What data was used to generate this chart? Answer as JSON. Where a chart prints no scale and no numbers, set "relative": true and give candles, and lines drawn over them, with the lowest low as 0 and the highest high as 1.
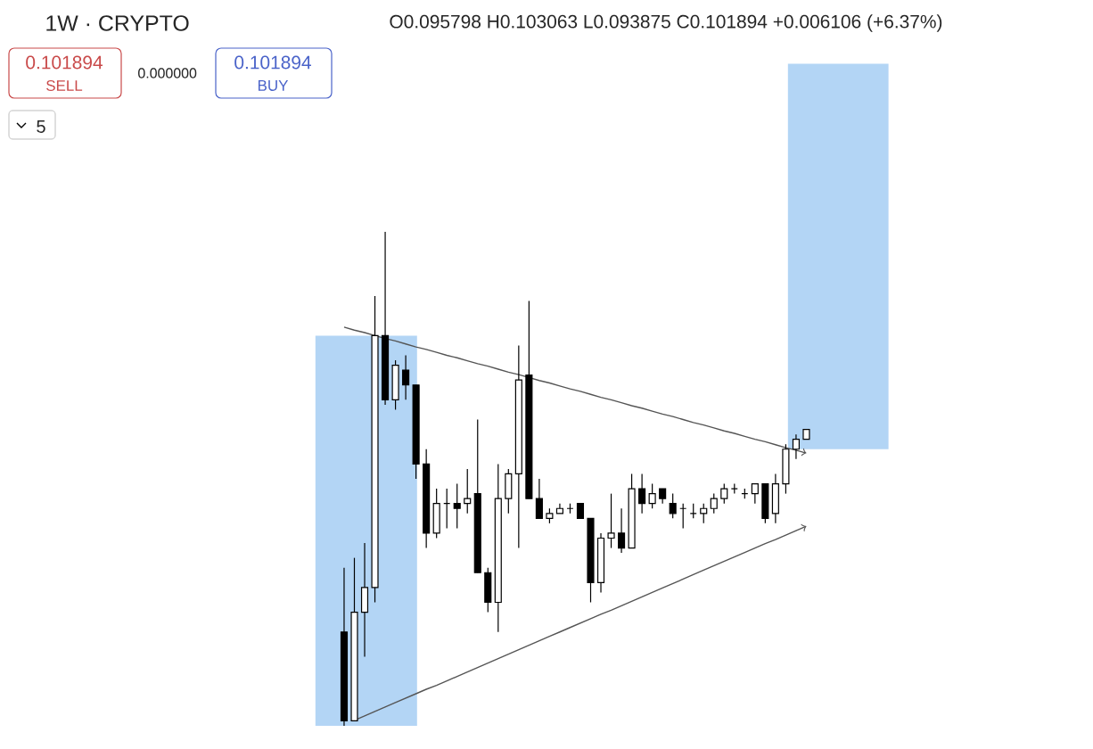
{
  "chart_data": {
    "type": "candlestick",
    "relative": true,
    "categories": [
      null,
      null,
      null,
      null,
      null,
      null,
      null,
      null,
      null,
      null,
      null,
      null,
      null,
      null,
      null,
      null,
      null,
      null,
      null,
      null,
      null,
      null,
      null,
      null,
      null,
      null,
      null,
      null,
      null,
      null,
      null,
      null,
      null,
      null,
      null,
      null,
      null,
      null,
      null,
      null,
      null,
      null,
      null,
      null,
      null,
      null
    ],
    "ohlc": [
      [
        0.19,
        0.32,
        0,
        0.01
      ],
      [
        0.01,
        0.34,
        0.01,
        0.23
      ],
      [
        0.23,
        0.37,
        0.14,
        0.28
      ],
      [
        0.28,
        0.87,
        0.25,
        0.79
      ],
      [
        0.79,
        1,
        0.65,
        0.66
      ],
      [
        0.66,
        0.74,
        0.64,
        0.73
      ],
      [
        0.72,
        0.75,
        0.66,
        0.69
      ],
      [
        0.69,
        0.69,
        0.5,
        0.53
      ],
      [
        0.53,
        0.56,
        0.36,
        0.39
      ],
      [
        0.39,
        0.48,
        0.38,
        0.45
      ],
      [
        0.45,
        0.48,
        0.4,
        0.45
      ],
      [
        0.45,
        0.49,
        0.4,
        0.44
      ],
      [
        0.45,
        0.52,
        0.43,
        0.46
      ],
      [
        0.47,
        0.62,
        0.31,
        0.31
      ],
      [
        0.31,
        0.32,
        0.23,
        0.25
      ],
      [
        0.25,
        0.53,
        0.19,
        0.46
      ],
      [
        0.46,
        0.52,
        0.43,
        0.51
      ],
      [
        0.51,
        0.77,
        0.36,
        0.7
      ],
      [
        0.71,
        0.86,
        0.46,
        0.46
      ],
      [
        0.46,
        0.5,
        0.42,
        0.42
      ],
      [
        0.42,
        0.44,
        0.41,
        0.43
      ],
      [
        0.43,
        0.45,
        0.43,
        0.44
      ],
      [
        0.44,
        0.45,
        0.43,
        0.44
      ],
      [
        0.45,
        0.45,
        0.42,
        0.42
      ],
      [
        0.42,
        0.42,
        0.25,
        0.29
      ],
      [
        0.29,
        0.39,
        0.27,
        0.38
      ],
      [
        0.38,
        0.47,
        0.36,
        0.39
      ],
      [
        0.39,
        0.44,
        0.35,
        0.36
      ],
      [
        0.36,
        0.51,
        0.36,
        0.48
      ],
      [
        0.48,
        0.51,
        0.43,
        0.45
      ],
      [
        0.45,
        0.49,
        0.44,
        0.47
      ],
      [
        0.48,
        0.48,
        0.45,
        0.46
      ],
      [
        0.45,
        0.47,
        0.42,
        0.43
      ],
      [
        0.44,
        0.45,
        0.4,
        0.44
      ],
      [
        0.43,
        0.45,
        0.42,
        0.43
      ],
      [
        0.43,
        0.45,
        0.41,
        0.44
      ],
      [
        0.44,
        0.47,
        0.43,
        0.46
      ],
      [
        0.46,
        0.49,
        0.45,
        0.48
      ],
      [
        0.48,
        0.49,
        0.47,
        0.48
      ],
      [
        0.47,
        0.48,
        0.46,
        0.47
      ],
      [
        0.47,
        0.49,
        0.45,
        0.49
      ],
      [
        0.49,
        0.49,
        0.41,
        0.42
      ],
      [
        0.43,
        0.51,
        0.41,
        0.49
      ],
      [
        0.49,
        0.57,
        0.47,
        0.56
      ],
      [
        0.56,
        0.59,
        0.54,
        0.58
      ],
      [
        0.58,
        0.6,
        0.58,
        0.6
      ]
    ],
    "series": [
      {
        "type": "line",
        "color": "#555555",
        "values": [
          0.807,
          0.801,
          0.796,
          0.79,
          0.784,
          0.779,
          0.773,
          0.767,
          0.762,
          0.756,
          0.75,
          0.745,
          0.739,
          0.733,
          0.728,
          0.722,
          0.716,
          0.711,
          0.705,
          0.699,
          0.694,
          0.688,
          0.682,
          0.677,
          0.671,
          0.665,
          0.66,
          0.654,
          0.648,
          0.643,
          0.637,
          0.631,
          0.626,
          0.62,
          0.614,
          0.609,
          0.603,
          0.597,
          0.592,
          0.586,
          0.58,
          0.575,
          0.569,
          0.563,
          0.558,
          0.552
        ]
      },
      {
        "type": "line",
        "color": "#555555",
        "values": [
          null,
          0.011,
          0.02,
          0.029,
          0.038,
          0.047,
          0.056,
          0.065,
          0.074,
          0.082,
          0.091,
          0.1,
          0.109,
          0.118,
          0.127,
          0.136,
          0.145,
          0.154,
          0.163,
          0.172,
          0.181,
          0.19,
          0.199,
          0.208,
          0.217,
          0.226,
          0.234,
          0.243,
          0.252,
          0.261,
          0.27,
          0.279,
          0.288,
          0.297,
          0.306,
          0.315,
          0.324,
          0.333,
          0.342,
          0.351,
          0.36,
          0.369,
          0.377,
          0.386,
          0.395,
          0.404
        ]
      }
    ],
    "annotations": [
      "1W · CRYPTO",
      "O0.095798 H0.103063 L0.093875 C0.101894 +0.006106 (+6.37%)",
      "0.101894",
      "SELL",
      "0.000000",
      "0.101894",
      "BUY",
      "5"
    ]
  }
}
